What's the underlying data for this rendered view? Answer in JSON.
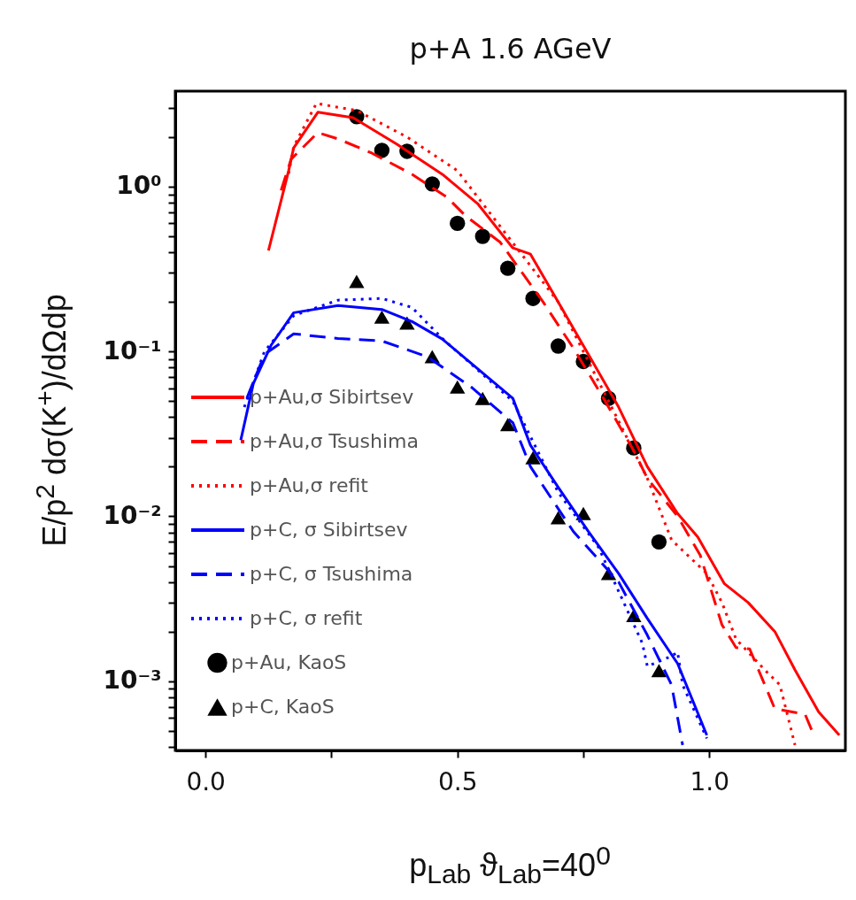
{
  "chart_data": {
    "type": "line",
    "title": "p+A  1.6  AGeV",
    "xlabel": "p$_{Lab}$  ϑ$_{Lab}$=40$^{0}$",
    "ylabel": "E/p$^{2}$  dσ(K$^{+}$)/dΩdp",
    "log": "y",
    "xlim": [
      -0.06,
      1.27
    ],
    "ylim": [
      0.00038,
      3.8
    ],
    "xticks": [
      {
        "value": 0,
        "label": "0.0"
      },
      {
        "value": 0.25,
        "label": null
      },
      0.5,
      {
        "value": 0.75,
        "label": null
      },
      {
        "value": 1,
        "label": "1.0"
      }
    ],
    "yticks": [
      {
        "value": 0.0004,
        "label": null
      },
      {
        "value": 0.0005,
        "label": null
      },
      {
        "value": 0.0006,
        "label": null
      },
      {
        "value": 0.0007,
        "label": null
      },
      {
        "value": 0.0008,
        "label": null
      },
      {
        "value": 0.0009,
        "label": null
      },
      {
        "value": 0.001,
        "label": "10⁻³"
      },
      {
        "value": 0.002,
        "label": null
      },
      {
        "value": 0.003,
        "label": null
      },
      {
        "value": 0.004,
        "label": null
      },
      {
        "value": 0.005,
        "label": null
      },
      {
        "value": 0.006,
        "label": null
      },
      {
        "value": 0.007,
        "label": null
      },
      {
        "value": 0.008,
        "label": null
      },
      {
        "value": 0.009,
        "label": null
      },
      {
        "value": 0.01,
        "label": "10⁻²"
      },
      {
        "value": 0.02,
        "label": null
      },
      {
        "value": 0.03,
        "label": null
      },
      {
        "value": 0.04,
        "label": null
      },
      {
        "value": 0.05,
        "label": null
      },
      {
        "value": 0.06,
        "label": null
      },
      {
        "value": 0.07,
        "label": null
      },
      {
        "value": 0.08,
        "label": null
      },
      {
        "value": 0.09,
        "label": null
      },
      {
        "value": 0.1,
        "label": "10⁻¹"
      },
      {
        "value": 0.2,
        "label": null
      },
      {
        "value": 0.3,
        "label": null
      },
      {
        "value": 0.4,
        "label": null
      },
      {
        "value": 0.5,
        "label": null
      },
      {
        "value": 0.6,
        "label": null
      },
      {
        "value": 0.7,
        "label": null
      },
      {
        "value": 0.8,
        "label": null
      },
      {
        "value": 0.9,
        "label": null
      },
      {
        "value": 1,
        "label": "10⁰"
      },
      {
        "value": 2,
        "label": null
      },
      {
        "value": 3,
        "label": null
      }
    ],
    "grid": false,
    "legend": "bottom left",
    "series": [
      {
        "name": "p+Au,σ Sibirtsev",
        "color": "#ff0000",
        "line_style": "solid",
        "x": [
          0.125,
          0.165,
          0.175,
          0.223,
          0.293,
          0.38,
          0.47,
          0.54,
          0.61,
          0.645,
          0.7,
          0.76,
          0.82,
          0.877,
          0.937,
          0.977,
          1.03,
          1.077,
          1.13,
          1.17,
          1.217,
          1.258
        ],
        "values": [
          0.41,
          1.25,
          1.72,
          2.83,
          2.62,
          1.81,
          1.19,
          0.79,
          0.425,
          0.39,
          0.2,
          0.096,
          0.046,
          0.02,
          0.0104,
          0.0075,
          0.0039,
          0.003,
          0.002,
          0.00117,
          0.00065,
          0.00047
        ]
      },
      {
        "name": "p+Au,σ Tsushima",
        "color": "#ff0000",
        "line_style": "dashed",
        "x": [
          0.15,
          0.17,
          0.223,
          0.263,
          0.33,
          0.41,
          0.48,
          0.515,
          0.585,
          0.67,
          0.73,
          0.79,
          0.85,
          0.877,
          0.937,
          0.982,
          1.025,
          1.053,
          1.08,
          1.13,
          1.19,
          1.205
        ],
        "values": [
          0.95,
          1.47,
          2.13,
          1.95,
          1.6,
          1.19,
          0.86,
          0.67,
          0.46,
          0.2,
          0.105,
          0.052,
          0.025,
          0.017,
          0.01,
          0.0058,
          0.0022,
          0.0016,
          0.00157,
          0.00068,
          0.00063,
          0.00049
        ]
      },
      {
        "name": "p+Au,σ refit",
        "color": "#ff0000",
        "line_style": "dotted",
        "x": [
          0.165,
          0.175,
          0.22,
          0.3,
          0.4,
          0.5,
          0.6,
          0.7,
          0.8,
          0.877,
          0.925,
          0.995,
          1.025,
          1.053,
          1.11,
          1.14,
          1.17
        ],
        "values": [
          1.2,
          1.75,
          3.2,
          2.9,
          2.0,
          1.25,
          0.5,
          0.2,
          0.05,
          0.017,
          0.0072,
          0.0045,
          0.003,
          0.0018,
          0.00117,
          0.00095,
          0.00041
        ]
      },
      {
        "name": "p+C, σ Sibirtsev",
        "color": "#0000ff",
        "line_style": "solid",
        "x": [
          0.07,
          0.095,
          0.13,
          0.175,
          0.263,
          0.35,
          0.41,
          0.47,
          0.527,
          0.61,
          0.645,
          0.7,
          0.76,
          0.82,
          0.877,
          0.937,
          0.995
        ],
        "values": [
          0.029,
          0.064,
          0.109,
          0.172,
          0.19,
          0.18,
          0.152,
          0.119,
          0.085,
          0.052,
          0.027,
          0.015,
          0.0081,
          0.0045,
          0.0024,
          0.00128,
          0.00047
        ]
      },
      {
        "name": "p+C, σ Tsushima",
        "color": "#0000ff",
        "line_style": "dashed",
        "x": [
          0.082,
          0.117,
          0.175,
          0.263,
          0.35,
          0.44,
          0.527,
          0.61,
          0.645,
          0.73,
          0.82,
          0.877,
          0.925,
          0.947
        ],
        "values": [
          0.052,
          0.096,
          0.128,
          0.12,
          0.116,
          0.093,
          0.061,
          0.037,
          0.02,
          0.0081,
          0.004,
          0.0019,
          0.00095,
          0.00041
        ]
      },
      {
        "name": "p+C, σ refit",
        "color": "#0000ff",
        "line_style": "dotted",
        "x": [
          0.077,
          0.117,
          0.175,
          0.263,
          0.35,
          0.41,
          0.47,
          0.61,
          0.7,
          0.78,
          0.867,
          0.877,
          0.925,
          0.937,
          0.947,
          0.995
        ],
        "values": [
          0.046,
          0.1,
          0.165,
          0.205,
          0.21,
          0.185,
          0.12,
          0.05,
          0.014,
          0.0065,
          0.0017,
          0.00123,
          0.00142,
          0.0015,
          0.00095,
          0.00045
        ]
      },
      {
        "name": "p+Au, KaoS",
        "type": "scatter",
        "marker": "circle",
        "color": "#000000",
        "x": [
          0.3,
          0.35,
          0.4,
          0.45,
          0.5,
          0.55,
          0.6,
          0.65,
          0.7,
          0.75,
          0.8,
          0.85,
          0.9
        ],
        "values": [
          2.66,
          1.66,
          1.64,
          1.04,
          0.6,
          0.5,
          0.32,
          0.21,
          0.108,
          0.087,
          0.052,
          0.026,
          0.007
        ]
      },
      {
        "name": "p+C, KaoS",
        "type": "scatter",
        "marker": "triangle",
        "color": "#000000",
        "x": [
          0.3,
          0.35,
          0.4,
          0.45,
          0.5,
          0.55,
          0.6,
          0.65,
          0.7,
          0.75,
          0.8,
          0.85,
          0.9
        ],
        "values": [
          0.266,
          0.162,
          0.149,
          0.093,
          0.061,
          0.052,
          0.036,
          0.0227,
          0.0098,
          0.0104,
          0.0045,
          0.0025,
          0.00116
        ]
      }
    ]
  }
}
